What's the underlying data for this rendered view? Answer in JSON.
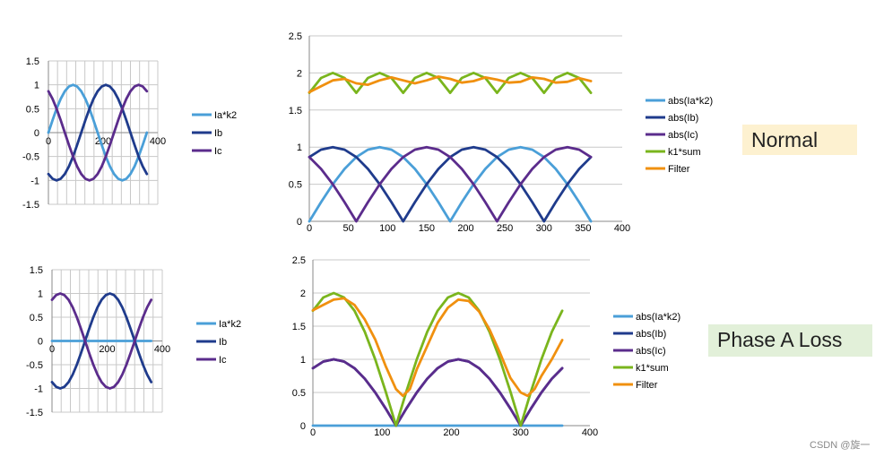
{
  "chart_data": [
    {
      "id": "c1",
      "type": "line",
      "title": "",
      "xlim": [
        0,
        400
      ],
      "ylim": [
        -1.5,
        1.5
      ],
      "xticks": [
        0,
        200,
        400
      ],
      "xtick_labels": [
        "0",
        "200",
        "400"
      ],
      "yticks": [
        -1.5,
        -1,
        -0.5,
        0,
        0.5,
        1,
        1.5
      ],
      "ytick_labels": [
        "-1.5",
        "-1",
        "-0.5",
        "0",
        "0.5",
        "1",
        "1.5"
      ],
      "grid": "both",
      "legend": "right",
      "series": [
        {
          "name": "Ia*k2",
          "color": "#4a9fd8",
          "x": [
            0,
            15,
            30,
            45,
            60,
            75,
            90,
            105,
            120,
            135,
            150,
            165,
            180,
            195,
            210,
            225,
            240,
            255,
            270,
            285,
            300,
            315,
            330,
            345,
            360
          ],
          "y": [
            0,
            0.259,
            0.5,
            0.707,
            0.866,
            0.966,
            1,
            0.966,
            0.866,
            0.707,
            0.5,
            0.259,
            0,
            -0.259,
            -0.5,
            -0.707,
            -0.866,
            -0.966,
            -1,
            -0.966,
            -0.866,
            -0.707,
            -0.5,
            -0.259,
            0
          ]
        },
        {
          "name": "Ib",
          "color": "#1f3b8c",
          "x": [
            0,
            15,
            30,
            45,
            60,
            75,
            90,
            105,
            120,
            135,
            150,
            165,
            180,
            195,
            210,
            225,
            240,
            255,
            270,
            285,
            300,
            315,
            330,
            345,
            360
          ],
          "y": [
            -0.866,
            -0.966,
            -1,
            -0.966,
            -0.866,
            -0.707,
            -0.5,
            -0.259,
            0,
            0.259,
            0.5,
            0.707,
            0.866,
            0.966,
            1,
            0.966,
            0.866,
            0.707,
            0.5,
            0.259,
            0,
            -0.259,
            -0.5,
            -0.707,
            -0.866
          ]
        },
        {
          "name": "Ic",
          "color": "#5b2c8c",
          "x": [
            0,
            15,
            30,
            45,
            60,
            75,
            90,
            105,
            120,
            135,
            150,
            165,
            180,
            195,
            210,
            225,
            240,
            255,
            270,
            285,
            300,
            315,
            330,
            345,
            360
          ],
          "y": [
            0.866,
            0.707,
            0.5,
            0.259,
            0,
            -0.259,
            -0.5,
            -0.707,
            -0.866,
            -0.966,
            -1,
            -0.966,
            -0.866,
            -0.707,
            -0.5,
            -0.259,
            0,
            0.259,
            0.5,
            0.707,
            0.866,
            0.966,
            1,
            0.966,
            0.866
          ]
        }
      ]
    },
    {
      "id": "c2",
      "type": "line",
      "title": "",
      "xlim": [
        0,
        400
      ],
      "ylim": [
        0,
        2.5
      ],
      "xticks": [
        0,
        50,
        100,
        150,
        200,
        250,
        300,
        350,
        400
      ],
      "xtick_labels": [
        "0",
        "50",
        "100",
        "150",
        "200",
        "250",
        "300",
        "350",
        "400"
      ],
      "yticks": [
        0,
        0.5,
        1,
        1.5,
        2,
        2.5
      ],
      "ytick_labels": [
        "0",
        "0.5",
        "1",
        "1.5",
        "2",
        "2.5"
      ],
      "grid": "y",
      "legend": "right",
      "series": [
        {
          "name": "abs(Ia*k2)",
          "color": "#4a9fd8",
          "x": [
            0,
            15,
            30,
            45,
            60,
            75,
            90,
            105,
            120,
            135,
            150,
            165,
            180,
            195,
            210,
            225,
            240,
            255,
            270,
            285,
            300,
            315,
            330,
            345,
            360
          ],
          "y": [
            0,
            0.259,
            0.5,
            0.707,
            0.866,
            0.966,
            1,
            0.966,
            0.866,
            0.707,
            0.5,
            0.259,
            0,
            0.259,
            0.5,
            0.707,
            0.866,
            0.966,
            1,
            0.966,
            0.866,
            0.707,
            0.5,
            0.259,
            0
          ]
        },
        {
          "name": "abs(Ib)",
          "color": "#1f3b8c",
          "x": [
            0,
            15,
            30,
            45,
            60,
            75,
            90,
            105,
            120,
            135,
            150,
            165,
            180,
            195,
            210,
            225,
            240,
            255,
            270,
            285,
            300,
            315,
            330,
            345,
            360
          ],
          "y": [
            0.866,
            0.966,
            1,
            0.966,
            0.866,
            0.707,
            0.5,
            0.259,
            0,
            0.259,
            0.5,
            0.707,
            0.866,
            0.966,
            1,
            0.966,
            0.866,
            0.707,
            0.5,
            0.259,
            0,
            0.259,
            0.5,
            0.707,
            0.866
          ]
        },
        {
          "name": "abs(Ic)",
          "color": "#5b2c8c",
          "x": [
            0,
            15,
            30,
            45,
            60,
            75,
            90,
            105,
            120,
            135,
            150,
            165,
            180,
            195,
            210,
            225,
            240,
            255,
            270,
            285,
            300,
            315,
            330,
            345,
            360
          ],
          "y": [
            0.866,
            0.707,
            0.5,
            0.259,
            0,
            0.259,
            0.5,
            0.707,
            0.866,
            0.966,
            1,
            0.966,
            0.866,
            0.707,
            0.5,
            0.259,
            0,
            0.259,
            0.5,
            0.707,
            0.866,
            0.966,
            1,
            0.966,
            0.866
          ]
        },
        {
          "name": "k1*sum",
          "color": "#7ab51d",
          "x": [
            0,
            15,
            30,
            45,
            60,
            75,
            90,
            105,
            120,
            135,
            150,
            165,
            180,
            195,
            210,
            225,
            240,
            255,
            270,
            285,
            300,
            315,
            330,
            345,
            360
          ],
          "y": [
            1.732,
            1.932,
            2,
            1.932,
            1.732,
            1.932,
            2,
            1.932,
            1.732,
            1.932,
            2,
            1.932,
            1.732,
            1.932,
            2,
            1.932,
            1.732,
            1.932,
            2,
            1.932,
            1.732,
            1.932,
            2,
            1.932,
            1.732
          ]
        },
        {
          "name": "Filter",
          "color": "#f0900f",
          "x": [
            0,
            15,
            30,
            45,
            60,
            75,
            90,
            105,
            120,
            135,
            150,
            165,
            180,
            195,
            210,
            225,
            240,
            255,
            270,
            285,
            300,
            315,
            330,
            345,
            360
          ],
          "y": [
            1.74,
            1.82,
            1.9,
            1.92,
            1.86,
            1.84,
            1.9,
            1.94,
            1.9,
            1.86,
            1.9,
            1.95,
            1.92,
            1.87,
            1.89,
            1.94,
            1.91,
            1.87,
            1.88,
            1.94,
            1.92,
            1.87,
            1.88,
            1.93,
            1.89
          ]
        }
      ]
    },
    {
      "id": "c3",
      "type": "line",
      "title": "",
      "xlim": [
        0,
        400
      ],
      "ylim": [
        -1.5,
        1.5
      ],
      "xticks": [
        0,
        200,
        400
      ],
      "xtick_labels": [
        "0",
        "200",
        "400"
      ],
      "yticks": [
        -1.5,
        -1,
        -0.5,
        0,
        0.5,
        1,
        1.5
      ],
      "ytick_labels": [
        "-1.5",
        "-1",
        "-0.5",
        "0",
        "0.5",
        "1",
        "1.5"
      ],
      "grid": "both",
      "legend": "right",
      "series": [
        {
          "name": "Ia*k2",
          "color": "#4a9fd8",
          "x": [
            0,
            360
          ],
          "y": [
            0,
            0
          ]
        },
        {
          "name": "Ib",
          "color": "#1f3b8c",
          "x": [
            0,
            15,
            30,
            45,
            60,
            75,
            90,
            105,
            120,
            135,
            150,
            165,
            180,
            195,
            210,
            225,
            240,
            255,
            270,
            285,
            300,
            315,
            330,
            345,
            360
          ],
          "y": [
            -0.866,
            -0.966,
            -1,
            -0.966,
            -0.866,
            -0.707,
            -0.5,
            -0.259,
            0,
            0.259,
            0.5,
            0.707,
            0.866,
            0.966,
            1,
            0.966,
            0.866,
            0.707,
            0.5,
            0.259,
            0,
            -0.259,
            -0.5,
            -0.707,
            -0.866
          ]
        },
        {
          "name": "Ic",
          "color": "#5b2c8c",
          "x": [
            0,
            15,
            30,
            45,
            60,
            75,
            90,
            105,
            120,
            135,
            150,
            165,
            180,
            195,
            210,
            225,
            240,
            255,
            270,
            285,
            300,
            315,
            330,
            345,
            360
          ],
          "y": [
            0.866,
            0.966,
            1,
            0.966,
            0.866,
            0.707,
            0.5,
            0.259,
            0,
            -0.259,
            -0.5,
            -0.707,
            -0.866,
            -0.966,
            -1,
            -0.966,
            -0.866,
            -0.707,
            -0.5,
            -0.259,
            0,
            0.259,
            0.5,
            0.707,
            0.866
          ]
        }
      ]
    },
    {
      "id": "c4",
      "type": "line",
      "title": "",
      "xlim": [
        0,
        400
      ],
      "ylim": [
        0,
        2.5
      ],
      "xticks": [
        0,
        100,
        200,
        300,
        400
      ],
      "xtick_labels": [
        "0",
        "100",
        "200",
        "300",
        "400"
      ],
      "yticks": [
        0,
        0.5,
        1,
        1.5,
        2,
        2.5
      ],
      "ytick_labels": [
        "0",
        "0.5",
        "1",
        "1.5",
        "2",
        "2.5"
      ],
      "grid": "y",
      "legend": "right",
      "series": [
        {
          "name": "abs(Ia*k2)",
          "color": "#4a9fd8",
          "x": [
            0,
            360
          ],
          "y": [
            0,
            0
          ]
        },
        {
          "name": "abs(Ib)",
          "color": "#1f3b8c",
          "x": [
            0,
            15,
            30,
            45,
            60,
            75,
            90,
            105,
            120,
            135,
            150,
            165,
            180,
            195,
            210,
            225,
            240,
            255,
            270,
            285,
            300,
            315,
            330,
            345,
            360
          ],
          "y": [
            0.866,
            0.966,
            1,
            0.966,
            0.866,
            0.707,
            0.5,
            0.259,
            0,
            0.259,
            0.5,
            0.707,
            0.866,
            0.966,
            1,
            0.966,
            0.866,
            0.707,
            0.5,
            0.259,
            0,
            0.259,
            0.5,
            0.707,
            0.866
          ]
        },
        {
          "name": "abs(Ic)",
          "color": "#5b2c8c",
          "x": [
            0,
            15,
            30,
            45,
            60,
            75,
            90,
            105,
            120,
            135,
            150,
            165,
            180,
            195,
            210,
            225,
            240,
            255,
            270,
            285,
            300,
            315,
            330,
            345,
            360
          ],
          "y": [
            0.866,
            0.966,
            1,
            0.966,
            0.866,
            0.707,
            0.5,
            0.259,
            0,
            0.259,
            0.5,
            0.707,
            0.866,
            0.966,
            1,
            0.966,
            0.866,
            0.707,
            0.5,
            0.259,
            0,
            0.259,
            0.5,
            0.707,
            0.866
          ]
        },
        {
          "name": "k1*sum",
          "color": "#7ab51d",
          "x": [
            0,
            15,
            30,
            45,
            60,
            75,
            90,
            105,
            120,
            135,
            150,
            165,
            180,
            195,
            210,
            225,
            240,
            255,
            270,
            285,
            300,
            315,
            330,
            345,
            360
          ],
          "y": [
            1.732,
            1.932,
            2,
            1.932,
            1.732,
            1.414,
            1,
            0.518,
            0,
            0.518,
            1,
            1.414,
            1.732,
            1.932,
            2,
            1.932,
            1.732,
            1.414,
            1,
            0.518,
            0,
            0.518,
            1,
            1.414,
            1.732
          ]
        },
        {
          "name": "Filter",
          "color": "#f0900f",
          "x": [
            0,
            15,
            30,
            45,
            60,
            75,
            90,
            105,
            120,
            130,
            140,
            150,
            165,
            180,
            195,
            210,
            225,
            240,
            255,
            270,
            285,
            300,
            310,
            320,
            330,
            345,
            360
          ],
          "y": [
            1.74,
            1.82,
            1.9,
            1.92,
            1.82,
            1.6,
            1.3,
            0.9,
            0.55,
            0.45,
            0.55,
            0.85,
            1.2,
            1.55,
            1.78,
            1.9,
            1.88,
            1.72,
            1.45,
            1.1,
            0.72,
            0.5,
            0.45,
            0.55,
            0.75,
            1.0,
            1.29
          ]
        }
      ]
    }
  ],
  "labels": {
    "normal": "Normal",
    "phase_loss": "Phase A Loss",
    "watermark": "CSDN @旋一"
  }
}
